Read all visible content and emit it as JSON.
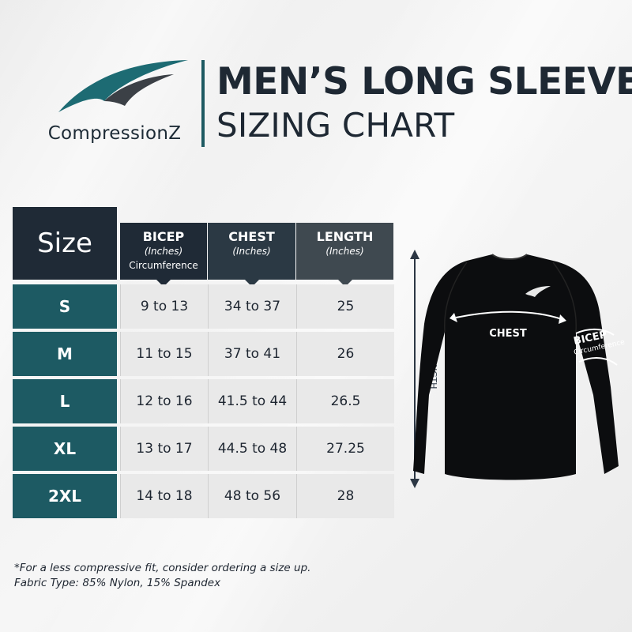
{
  "brand": {
    "name": "CompressionZ",
    "colors": {
      "teal": "#1d5a63",
      "navy": "#1f2a36",
      "gray": "#3c4248"
    }
  },
  "title": {
    "line1": "MEN’S LONG SLEEVE",
    "line2": "SIZING CHART"
  },
  "table": {
    "size_header": "Size",
    "columns": [
      {
        "name": "BICEP",
        "unit": "(Inches)",
        "note": "Circumference"
      },
      {
        "name": "CHEST",
        "unit": "(Inches)",
        "note": ""
      },
      {
        "name": "LENGTH",
        "unit": "(Inches)",
        "note": ""
      }
    ],
    "rows": [
      {
        "size": "S",
        "bicep": "9 to 13",
        "chest": "34 to 37",
        "length": "25"
      },
      {
        "size": "M",
        "bicep": "11 to 15",
        "chest": "37 to 41",
        "length": "26"
      },
      {
        "size": "L",
        "bicep": "12 to 16",
        "chest": "41.5 to 44",
        "length": "26.5"
      },
      {
        "size": "XL",
        "bicep": "13 to 17",
        "chest": "44.5 to 48",
        "length": "27.25"
      },
      {
        "size": "2XL",
        "bicep": "14 to 18",
        "chest": "48 to 56",
        "length": "28"
      }
    ]
  },
  "diagram": {
    "length_label": "LENGTH",
    "chest_label": "CHEST",
    "bicep_label": "BICEP",
    "bicep_note": "Circumference"
  },
  "footnotes": [
    "*For a less compressive fit, consider ordering a size up.",
    "Fabric Type: 85% Nylon, 15% Spandex"
  ]
}
